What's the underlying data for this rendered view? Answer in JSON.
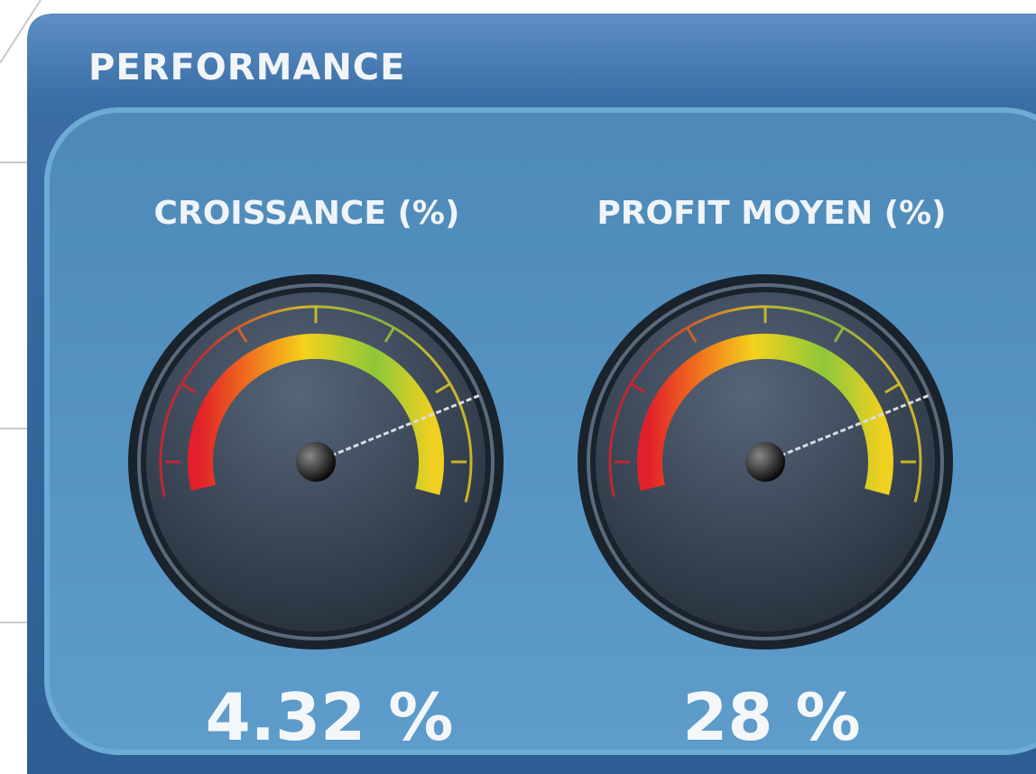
{
  "header": {
    "title": "PERFORMANCE"
  },
  "gauges": [
    {
      "label": "CROISSANCE (%)",
      "value": "4.32 %"
    },
    {
      "label": "PROFIT MOYEN (%)",
      "value": "28 %"
    }
  ]
}
